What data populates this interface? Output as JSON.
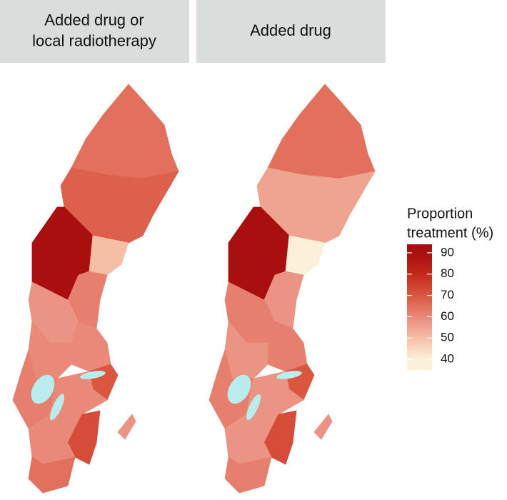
{
  "chart_data": {
    "type": "choropleth",
    "panels": [
      {
        "title": [
          "Added drug or",
          "local radiotherapy"
        ],
        "values": [
          65,
          68,
          90,
          50,
          62,
          58,
          60,
          60,
          70,
          62,
          60,
          72,
          60,
          65,
          58
        ]
      },
      {
        "title": [
          "Added drug"
        ],
        "values": [
          65,
          55,
          90,
          38,
          58,
          62,
          62,
          58,
          70,
          62,
          58,
          72,
          58,
          62,
          58
        ]
      }
    ],
    "legend": {
      "title": [
        "Proportion",
        "treatment (%)"
      ],
      "ticks": [
        40,
        50,
        60,
        70,
        80,
        90
      ],
      "colors": [
        "#fdf0d8",
        "#f5bfa6",
        "#e9897a",
        "#d9563f",
        "#c4281c",
        "#a90f0e"
      ],
      "lim": [
        35,
        94
      ]
    }
  }
}
